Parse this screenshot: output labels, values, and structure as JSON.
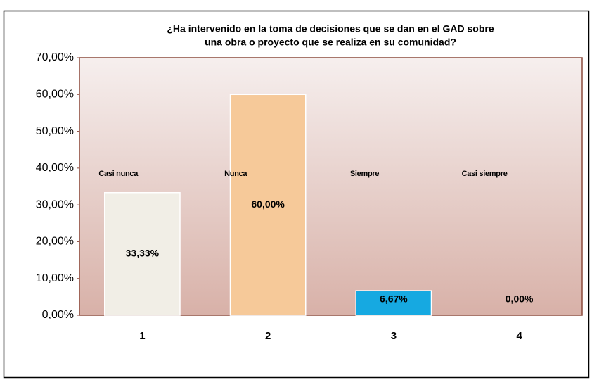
{
  "chart_data": {
    "type": "bar",
    "title_lines": [
      "¿Ha intervenido en la toma de decisiones que se dan en el GAD sobre",
      "una obra o proyecto que se realiza en su comunidad?"
    ],
    "categories": [
      "1",
      "2",
      "3",
      "4"
    ],
    "bar_names": [
      "Casi nunca",
      "Nunca",
      "Siempre",
      "Casi siempre"
    ],
    "values": [
      33.33,
      60,
      6.67,
      0
    ],
    "value_labels": [
      "33,33%",
      "60,00%",
      "6,67%",
      "0,00%"
    ],
    "colors": [
      "#f1eee6",
      "#f6c999",
      "#16a9e1",
      "#f1eee6"
    ],
    "ylim": [
      0,
      70
    ],
    "yticks": [
      {
        "value": 0,
        "label": "0,00%"
      },
      {
        "value": 10,
        "label": "10,00%"
      },
      {
        "value": 20,
        "label": "20,00%"
      },
      {
        "value": 30,
        "label": "30,00%"
      },
      {
        "value": 40,
        "label": "40,00%"
      },
      {
        "value": 50,
        "label": "50,00%"
      },
      {
        "value": 60,
        "label": "60,00%"
      },
      {
        "value": 70,
        "label": "70,00%"
      }
    ],
    "grid": false
  }
}
